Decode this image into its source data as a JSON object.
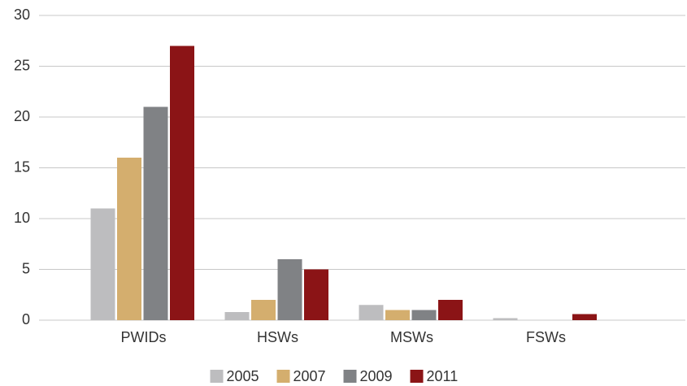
{
  "chart_data": {
    "type": "bar",
    "categories": [
      "PWIDs",
      "HSWs",
      "MSWs",
      "FSWs"
    ],
    "series": [
      {
        "name": "2005",
        "color": "#bdbdbf",
        "values": [
          11,
          0.8,
          1.5,
          0.2
        ]
      },
      {
        "name": "2007",
        "color": "#d4ae6e",
        "values": [
          16,
          2,
          1,
          0
        ]
      },
      {
        "name": "2009",
        "color": "#808285",
        "values": [
          21,
          6,
          1,
          0
        ]
      },
      {
        "name": "2011",
        "color": "#8b1416",
        "values": [
          27,
          5,
          2,
          0.6
        ]
      }
    ],
    "ylim": [
      0,
      30
    ],
    "yticks": [
      0,
      5,
      10,
      15,
      20,
      25,
      30
    ],
    "grid": true,
    "legend": "bottom"
  }
}
